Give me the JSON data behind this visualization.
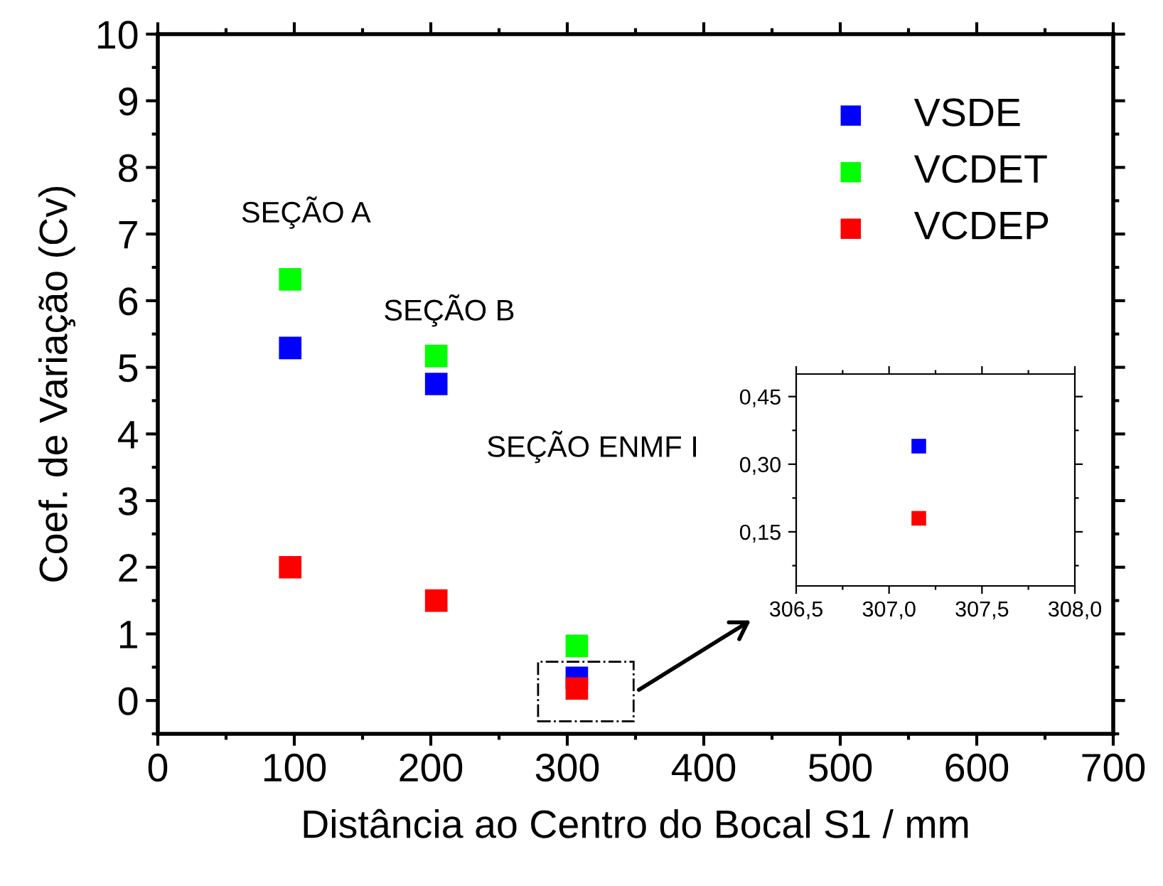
{
  "chart_data": [
    {
      "type": "scatter",
      "xlabel": "Distância ao Centro do Bocal S1 / mm",
      "ylabel": "Coef. de Variação (Cv)",
      "xlim": [
        0,
        700
      ],
      "xticks": [
        0,
        100,
        200,
        300,
        400,
        500,
        600,
        700
      ],
      "ylim": [
        -0.5,
        10
      ],
      "yticks": [
        0,
        1,
        2,
        3,
        4,
        5,
        6,
        7,
        8,
        9,
        10
      ],
      "marker": "square",
      "legend": "top right",
      "grid": false,
      "x": [
        97,
        204,
        307
      ],
      "series": [
        {
          "name": "VSDE",
          "color": "#0000ff",
          "values": [
            5.29,
            4.75,
            0.34
          ]
        },
        {
          "name": "VCDET",
          "color": "#00ff00",
          "values": [
            6.32,
            5.17,
            0.82
          ]
        },
        {
          "name": "VCDEP",
          "color": "#ff0000",
          "values": [
            2.0,
            1.5,
            0.18
          ]
        }
      ],
      "annotations": [
        "SEÇÃO A",
        "SEÇÃO B",
        "SEÇÃO ENMF I"
      ]
    },
    {
      "type": "scatter",
      "xlim": [
        306.5,
        308.0
      ],
      "xticks": [
        {
          "value": 306.5,
          "label": "306,5"
        },
        {
          "value": 307.0,
          "label": "307,0"
        },
        {
          "value": 307.5,
          "label": "307,5"
        },
        {
          "value": 308.0,
          "label": "308,0"
        }
      ],
      "ylim": [
        0.03,
        0.5
      ],
      "yticks": [
        {
          "value": 0.15,
          "label": "0,15"
        },
        {
          "value": 0.3,
          "label": "0,30"
        },
        {
          "value": 0.45,
          "label": "0,45"
        }
      ],
      "marker": "square",
      "grid": false,
      "x": [
        307.16
      ],
      "series": [
        {
          "color": "#0000ff",
          "values": [
            0.34
          ]
        },
        {
          "color": "#ff0000",
          "values": [
            0.18
          ]
        }
      ]
    }
  ]
}
